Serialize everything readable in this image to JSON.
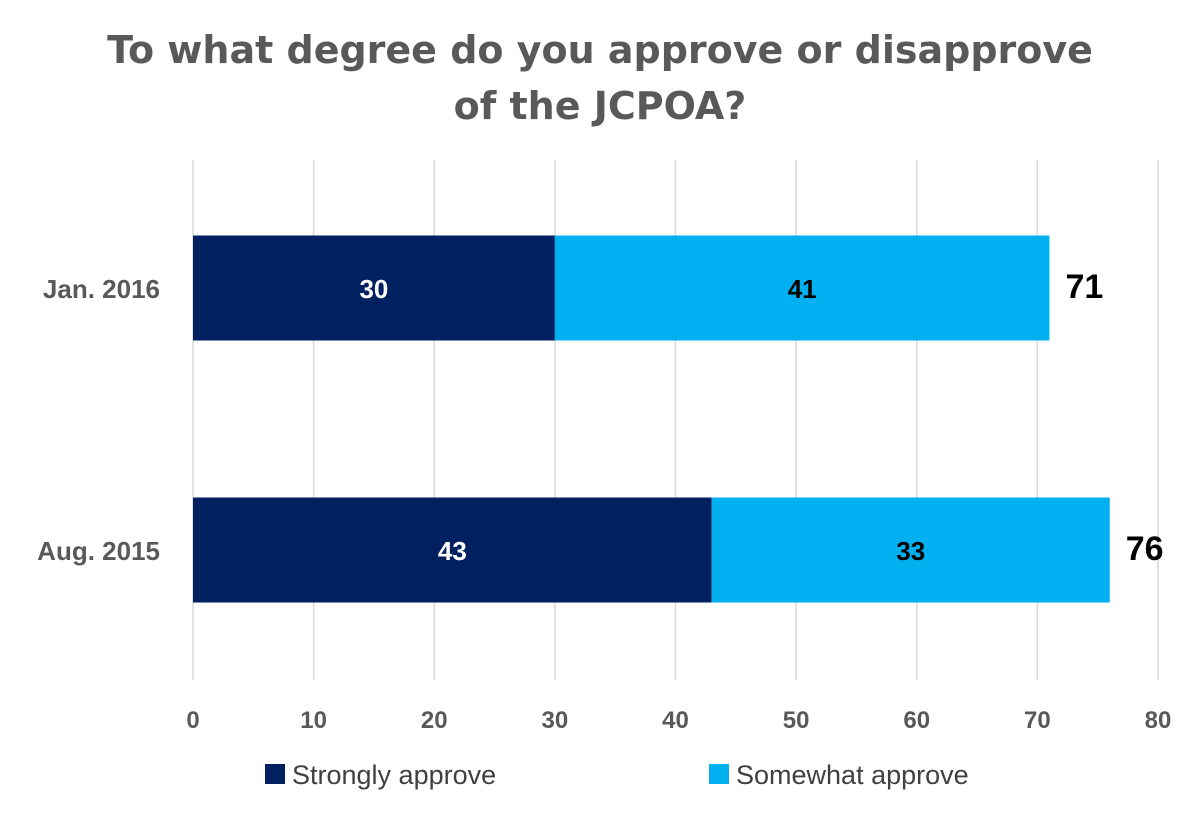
{
  "chart_data": {
    "type": "bar",
    "orientation": "horizontal",
    "stacked": true,
    "title_lines": [
      "To what degree do you approve or disapprove",
      "of the JCPOA?"
    ],
    "categories": [
      "Jan. 2016",
      "Aug. 2015"
    ],
    "series": [
      {
        "name": "Strongly approve",
        "values": [
          30,
          43
        ],
        "color": "#002060",
        "label_color": "#ffffff"
      },
      {
        "name": "Somewhat approve",
        "values": [
          41,
          33
        ],
        "color": "#00B0F0",
        "label_color": "#000000"
      }
    ],
    "totals": [
      71,
      76
    ],
    "xlim": [
      0,
      80
    ],
    "xticks": [
      "0",
      "10",
      "20",
      "30",
      "40",
      "50",
      "60",
      "70",
      "80"
    ],
    "grid": true,
    "gridline_color": "#d9d9d9",
    "legend_position": "bottom"
  }
}
